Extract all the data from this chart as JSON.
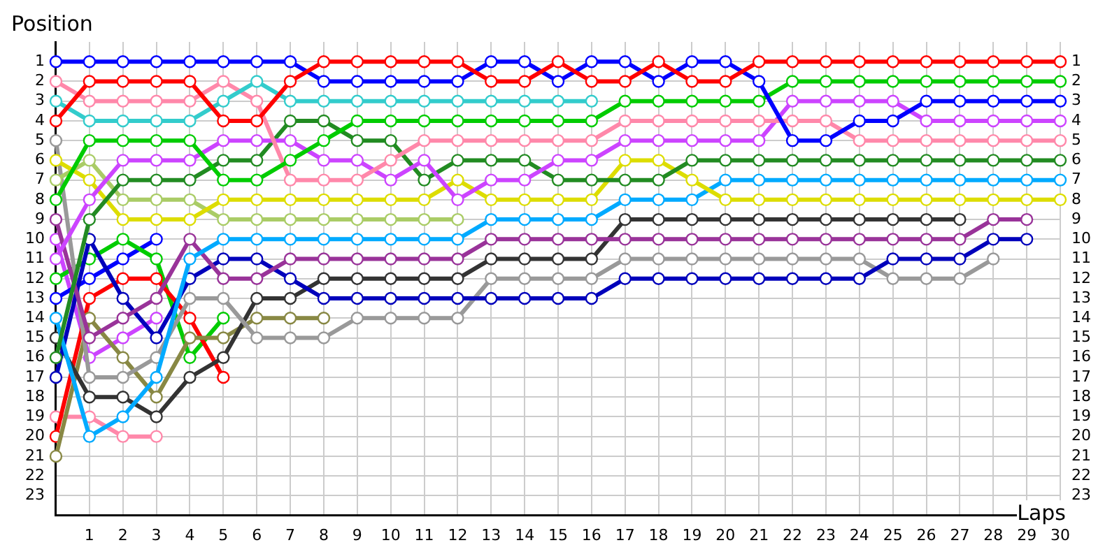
{
  "chart_data": {
    "type": "line",
    "ylabel": "Position",
    "xlabel": "Laps",
    "x": [
      0,
      1,
      2,
      3,
      4,
      5,
      6,
      7,
      8,
      9,
      10,
      11,
      12,
      13,
      14,
      15,
      16,
      17,
      18,
      19,
      20,
      21,
      22,
      23,
      24,
      25,
      26,
      27,
      28,
      29,
      30
    ],
    "xlim": [
      0,
      30
    ],
    "xticks": [
      1,
      2,
      3,
      4,
      5,
      6,
      7,
      8,
      9,
      10,
      11,
      12,
      13,
      14,
      15,
      16,
      17,
      18,
      19,
      20,
      21,
      22,
      23,
      24,
      25,
      26,
      27,
      28,
      29,
      30
    ],
    "ylim": [
      24,
      0
    ],
    "yticks": [
      1,
      2,
      3,
      4,
      5,
      6,
      7,
      8,
      9,
      10,
      11,
      12,
      13,
      14,
      15,
      16,
      17,
      18,
      19,
      20,
      21,
      22,
      23
    ],
    "y2lim": [
      24,
      0
    ],
    "y2ticks": [
      1,
      2,
      3,
      4,
      5,
      6,
      7,
      8,
      9,
      10,
      11,
      12,
      13,
      14,
      15,
      16,
      17,
      18,
      19,
      20,
      21,
      22,
      23
    ],
    "grid": true,
    "legend": false,
    "marker": "circle",
    "line_style": "solid",
    "series": [
      {
        "color": "#ff0000",
        "values": [
          4,
          2,
          2,
          2,
          2,
          4,
          4,
          2,
          1,
          1,
          1,
          1,
          1,
          2,
          2,
          1,
          2,
          2,
          1,
          2,
          2,
          1,
          1,
          1,
          1,
          1,
          1,
          1,
          1,
          1,
          1
        ]
      },
      {
        "color": "#0000ff",
        "values": [
          1,
          1,
          1,
          1,
          1,
          1,
          1,
          1,
          2,
          2,
          2,
          2,
          2,
          1,
          1,
          2,
          1,
          1,
          2,
          1,
          1,
          2,
          5,
          5,
          4,
          4,
          3,
          3,
          3,
          3,
          3
        ]
      },
      {
        "color": "#33cccc",
        "values": [
          3,
          4,
          4,
          4,
          4,
          3,
          2,
          3,
          3,
          3,
          3,
          3,
          3,
          3,
          3,
          3,
          3,
          null,
          null,
          null,
          null,
          null,
          null,
          null,
          null,
          null,
          null,
          null,
          null,
          null,
          null
        ]
      },
      {
        "color": "#00cc00",
        "values": [
          8,
          5,
          5,
          5,
          5,
          7,
          7,
          6,
          5,
          4,
          4,
          4,
          4,
          4,
          4,
          4,
          4,
          3,
          3,
          3,
          3,
          3,
          2,
          2,
          2,
          2,
          2,
          2,
          2,
          2,
          2
        ]
      },
      {
        "color": "#ff88aa",
        "values": [
          2,
          3,
          3,
          3,
          3,
          2,
          3,
          7,
          7,
          7,
          6,
          5,
          5,
          5,
          5,
          5,
          5,
          4,
          4,
          4,
          4,
          4,
          4,
          4,
          5,
          5,
          5,
          5,
          5,
          5,
          5
        ]
      },
      {
        "color": "#cc44ff",
        "values": [
          11,
          8,
          6,
          6,
          6,
          5,
          5,
          5,
          6,
          6,
          7,
          6,
          8,
          7,
          7,
          6,
          6,
          5,
          5,
          5,
          5,
          5,
          3,
          3,
          3,
          3,
          4,
          4,
          4,
          4,
          4
        ]
      },
      {
        "color": "#228b22",
        "values": [
          16,
          9,
          7,
          7,
          7,
          6,
          6,
          4,
          4,
          5,
          5,
          7,
          6,
          6,
          6,
          7,
          7,
          7,
          7,
          6,
          6,
          6,
          6,
          6,
          6,
          6,
          6,
          6,
          6,
          6,
          6
        ]
      },
      {
        "color": "#dddd00",
        "values": [
          6,
          7,
          9,
          9,
          9,
          8,
          8,
          8,
          8,
          8,
          8,
          8,
          7,
          8,
          8,
          8,
          8,
          6,
          6,
          7,
          8,
          8,
          8,
          8,
          8,
          8,
          8,
          8,
          8,
          8,
          8
        ]
      },
      {
        "color": "#aacc66",
        "values": [
          7,
          6,
          8,
          8,
          8,
          9,
          9,
          9,
          9,
          9,
          9,
          9,
          9,
          null,
          null,
          null,
          null,
          null,
          null,
          null,
          null,
          null,
          null,
          null,
          null,
          null,
          null,
          null,
          null,
          null,
          null
        ]
      },
      {
        "color": "#00aaff",
        "values": [
          14,
          20,
          19,
          17,
          11,
          10,
          10,
          10,
          10,
          10,
          10,
          10,
          10,
          9,
          9,
          9,
          9,
          8,
          8,
          8,
          7,
          7,
          7,
          7,
          7,
          7,
          7,
          7,
          7,
          7,
          7
        ]
      },
      {
        "color": "#993399",
        "values": [
          9,
          15,
          14,
          13,
          10,
          12,
          12,
          11,
          11,
          11,
          11,
          11,
          11,
          10,
          10,
          10,
          10,
          10,
          10,
          10,
          10,
          10,
          10,
          10,
          10,
          10,
          10,
          10,
          9,
          9,
          null
        ]
      },
      {
        "color": "#0000bb",
        "values": [
          17,
          10,
          13,
          15,
          12,
          11,
          11,
          12,
          13,
          13,
          13,
          13,
          13,
          13,
          13,
          13,
          13,
          12,
          12,
          12,
          12,
          12,
          12,
          12,
          12,
          11,
          11,
          11,
          10,
          10,
          null
        ]
      },
      {
        "color": "#999999",
        "values": [
          5,
          17,
          17,
          16,
          13,
          13,
          15,
          15,
          15,
          14,
          14,
          14,
          14,
          12,
          12,
          12,
          12,
          11,
          11,
          11,
          11,
          11,
          11,
          11,
          11,
          12,
          12,
          12,
          11,
          null,
          null
        ]
      },
      {
        "color": "#333333",
        "values": [
          15,
          18,
          18,
          19,
          17,
          16,
          13,
          13,
          12,
          12,
          12,
          12,
          12,
          11,
          11,
          11,
          11,
          9,
          9,
          9,
          9,
          9,
          9,
          9,
          9,
          9,
          9,
          9,
          null,
          null,
          null
        ]
      },
      {
        "color": "#888844",
        "values": [
          21,
          14,
          16,
          18,
          15,
          15,
          14,
          14,
          14,
          null,
          null,
          null,
          null,
          null,
          null,
          null,
          null,
          null,
          null,
          null,
          null,
          null,
          null,
          null,
          null,
          null,
          null,
          null,
          null,
          null,
          null
        ]
      },
      {
        "color": "#ff0000",
        "values": [
          20,
          13,
          12,
          12,
          14,
          17,
          null,
          null,
          null,
          null,
          null,
          null,
          null,
          null,
          null,
          null,
          null,
          null,
          null,
          null,
          null,
          null,
          null,
          null,
          null,
          null,
          null,
          null,
          null,
          null,
          null
        ]
      },
      {
        "color": "#00cc00",
        "values": [
          12,
          11,
          10,
          11,
          16,
          14,
          null,
          null,
          null,
          null,
          null,
          null,
          null,
          null,
          null,
          null,
          null,
          null,
          null,
          null,
          null,
          null,
          null,
          null,
          null,
          null,
          null,
          null,
          null,
          null,
          null
        ]
      },
      {
        "color": "#0000ff",
        "values": [
          13,
          12,
          11,
          10,
          null,
          null,
          null,
          null,
          null,
          null,
          null,
          null,
          null,
          null,
          null,
          null,
          null,
          null,
          null,
          null,
          null,
          null,
          null,
          null,
          null,
          null,
          null,
          null,
          null,
          null,
          null
        ]
      },
      {
        "color": "#ff88aa",
        "values": [
          19,
          19,
          20,
          20,
          null,
          null,
          null,
          null,
          null,
          null,
          null,
          null,
          null,
          null,
          null,
          null,
          null,
          null,
          null,
          null,
          null,
          null,
          null,
          null,
          null,
          null,
          null,
          null,
          null,
          null,
          null
        ]
      },
      {
        "color": "#cc44ff",
        "values": [
          10,
          16,
          15,
          14,
          null,
          null,
          null,
          null,
          null,
          null,
          null,
          null,
          null,
          null,
          null,
          null,
          null,
          null,
          null,
          null,
          null,
          null,
          null,
          null,
          null,
          null,
          null,
          null,
          null,
          null,
          null
        ]
      }
    ]
  }
}
